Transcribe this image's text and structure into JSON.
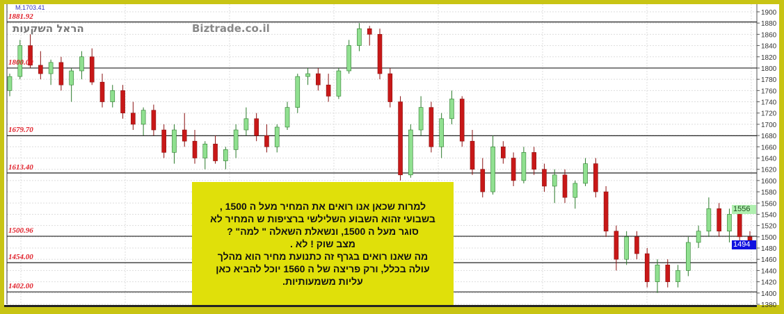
{
  "header": {
    "top_label": "M.1703.41",
    "brand": "Biztrade.co.il",
    "hebrew_logo": "הראל השקעות"
  },
  "note": {
    "text": "למרות שכאן אנו רואים את המחיר מעל ה 1500 ,\nבשבועי זהוא השבוע השלילשי ברציפות ש המחיר לא\nסוגר מעל ה 1500, ונשאלת השאלה \" למה\" ?\nמצב שוק ! לא .\nמה שאנו רואים בגרף זה כתנועת מחיר הוא מהלך\nעולה בכלל, ורק פריצה של ה 1560 יוכל להביא כאן\nעליות משמעותיות."
  },
  "badges": {
    "upper": "1556",
    "current": "1494"
  },
  "colors": {
    "frame": "#c8c414",
    "up": "#90e090",
    "down": "#c81818",
    "level": "#e0202a",
    "current_badge": "#1010e0",
    "upper_badge": "#b0f0b0",
    "note_bg": "#e0e00a"
  },
  "chart_data": {
    "type": "candlestick",
    "ylim": [
      1380,
      1900
    ],
    "yticks": [
      1380,
      1400,
      1420,
      1440,
      1460,
      1480,
      1500,
      1520,
      1540,
      1560,
      1580,
      1600,
      1620,
      1640,
      1660,
      1680,
      1700,
      1720,
      1740,
      1760,
      1780,
      1800,
      1820,
      1840,
      1860,
      1880,
      1900
    ],
    "grid": true,
    "levels": [
      {
        "value": 1881.92,
        "label": "1881.92"
      },
      {
        "value": 1800.0,
        "label": "1800.00"
      },
      {
        "value": 1679.7,
        "label": "1679.70"
      },
      {
        "value": 1613.4,
        "label": "1613.40"
      },
      {
        "value": 1500.96,
        "label": "1500.96"
      },
      {
        "value": 1454.0,
        "label": "1454.00"
      },
      {
        "value": 1402.0,
        "label": "1402.00"
      }
    ],
    "ohlc": [
      [
        1760,
        1790,
        1750,
        1785
      ],
      [
        1785,
        1850,
        1780,
        1840
      ],
      [
        1840,
        1860,
        1800,
        1805
      ],
      [
        1805,
        1830,
        1780,
        1790
      ],
      [
        1790,
        1815,
        1770,
        1810
      ],
      [
        1810,
        1820,
        1760,
        1770
      ],
      [
        1770,
        1800,
        1740,
        1795
      ],
      [
        1795,
        1830,
        1780,
        1820
      ],
      [
        1820,
        1835,
        1770,
        1775
      ],
      [
        1775,
        1790,
        1730,
        1740
      ],
      [
        1740,
        1770,
        1730,
        1760
      ],
      [
        1760,
        1770,
        1710,
        1720
      ],
      [
        1720,
        1740,
        1690,
        1700
      ],
      [
        1700,
        1730,
        1680,
        1725
      ],
      [
        1725,
        1735,
        1680,
        1690
      ],
      [
        1690,
        1700,
        1640,
        1650
      ],
      [
        1650,
        1700,
        1630,
        1690
      ],
      [
        1690,
        1720,
        1660,
        1670
      ],
      [
        1670,
        1690,
        1630,
        1640
      ],
      [
        1640,
        1670,
        1620,
        1665
      ],
      [
        1665,
        1680,
        1630,
        1635
      ],
      [
        1635,
        1660,
        1620,
        1655
      ],
      [
        1655,
        1700,
        1640,
        1690
      ],
      [
        1690,
        1730,
        1680,
        1710
      ],
      [
        1710,
        1720,
        1670,
        1680
      ],
      [
        1680,
        1700,
        1650,
        1660
      ],
      [
        1660,
        1700,
        1650,
        1695
      ],
      [
        1695,
        1740,
        1690,
        1730
      ],
      [
        1730,
        1790,
        1720,
        1785
      ],
      [
        1785,
        1800,
        1770,
        1790
      ],
      [
        1790,
        1800,
        1760,
        1770
      ],
      [
        1770,
        1790,
        1740,
        1750
      ],
      [
        1750,
        1800,
        1745,
        1795
      ],
      [
        1795,
        1850,
        1790,
        1840
      ],
      [
        1840,
        1880,
        1830,
        1870
      ],
      [
        1870,
        1875,
        1840,
        1860
      ],
      [
        1860,
        1870,
        1780,
        1790
      ],
      [
        1790,
        1800,
        1730,
        1740
      ],
      [
        1740,
        1750,
        1600,
        1610
      ],
      [
        1610,
        1700,
        1605,
        1690
      ],
      [
        1690,
        1750,
        1680,
        1730
      ],
      [
        1730,
        1740,
        1650,
        1660
      ],
      [
        1660,
        1720,
        1640,
        1710
      ],
      [
        1710,
        1760,
        1700,
        1745
      ],
      [
        1745,
        1750,
        1660,
        1670
      ],
      [
        1670,
        1690,
        1610,
        1620
      ],
      [
        1620,
        1640,
        1570,
        1580
      ],
      [
        1580,
        1680,
        1575,
        1660
      ],
      [
        1660,
        1670,
        1630,
        1640
      ],
      [
        1640,
        1650,
        1590,
        1600
      ],
      [
        1600,
        1660,
        1595,
        1650
      ],
      [
        1650,
        1660,
        1610,
        1620
      ],
      [
        1620,
        1630,
        1580,
        1590
      ],
      [
        1590,
        1620,
        1560,
        1610
      ],
      [
        1610,
        1620,
        1560,
        1570
      ],
      [
        1570,
        1600,
        1550,
        1595
      ],
      [
        1595,
        1640,
        1590,
        1630
      ],
      [
        1630,
        1640,
        1570,
        1580
      ],
      [
        1580,
        1590,
        1500,
        1510
      ],
      [
        1510,
        1520,
        1440,
        1460
      ],
      [
        1460,
        1510,
        1450,
        1500
      ],
      [
        1500,
        1510,
        1460,
        1470
      ],
      [
        1470,
        1480,
        1410,
        1420
      ],
      [
        1420,
        1460,
        1400,
        1450
      ],
      [
        1450,
        1460,
        1410,
        1420
      ],
      [
        1420,
        1450,
        1410,
        1440
      ],
      [
        1440,
        1500,
        1430,
        1490
      ],
      [
        1490,
        1520,
        1480,
        1510
      ],
      [
        1510,
        1570,
        1500,
        1550
      ],
      [
        1550,
        1560,
        1500,
        1510
      ],
      [
        1510,
        1550,
        1490,
        1540
      ],
      [
        1540,
        1545,
        1490,
        1500
      ],
      [
        1500,
        1510,
        1480,
        1494
      ]
    ]
  }
}
